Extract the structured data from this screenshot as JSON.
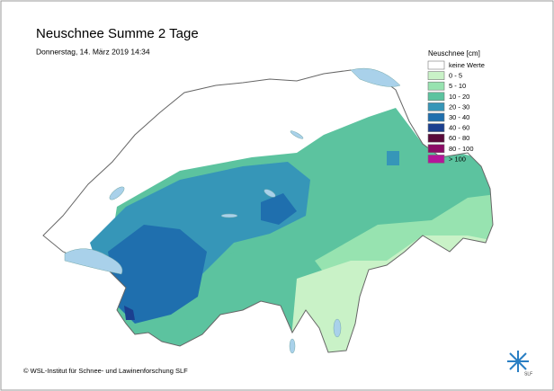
{
  "header": {
    "title": "Neuschnee Summe 2 Tage",
    "subtitle": "Donnerstag, 14. März 2019 14:34"
  },
  "legend": {
    "title": "Neuschnee [cm]",
    "items": [
      {
        "label": "keine Werte",
        "color": "#ffffff"
      },
      {
        "label": "0 - 5",
        "color": "#c9f2c7"
      },
      {
        "label": "5 - 10",
        "color": "#97e3b0"
      },
      {
        "label": "10 - 20",
        "color": "#5cc39f"
      },
      {
        "label": "20 - 30",
        "color": "#3696b8"
      },
      {
        "label": "30 - 40",
        "color": "#1f6fae"
      },
      {
        "label": "40 - 60",
        "color": "#1b3f8f"
      },
      {
        "label": "60 - 80",
        "color": "#5a0a3a"
      },
      {
        "label": "80 - 100",
        "color": "#8c0c66"
      },
      {
        "label": "> 100",
        "color": "#b5159a"
      }
    ]
  },
  "footer": {
    "credit": "© WSL-Institut für Schnee- und Lawinenforschung SLF",
    "logo": "SLF"
  }
}
